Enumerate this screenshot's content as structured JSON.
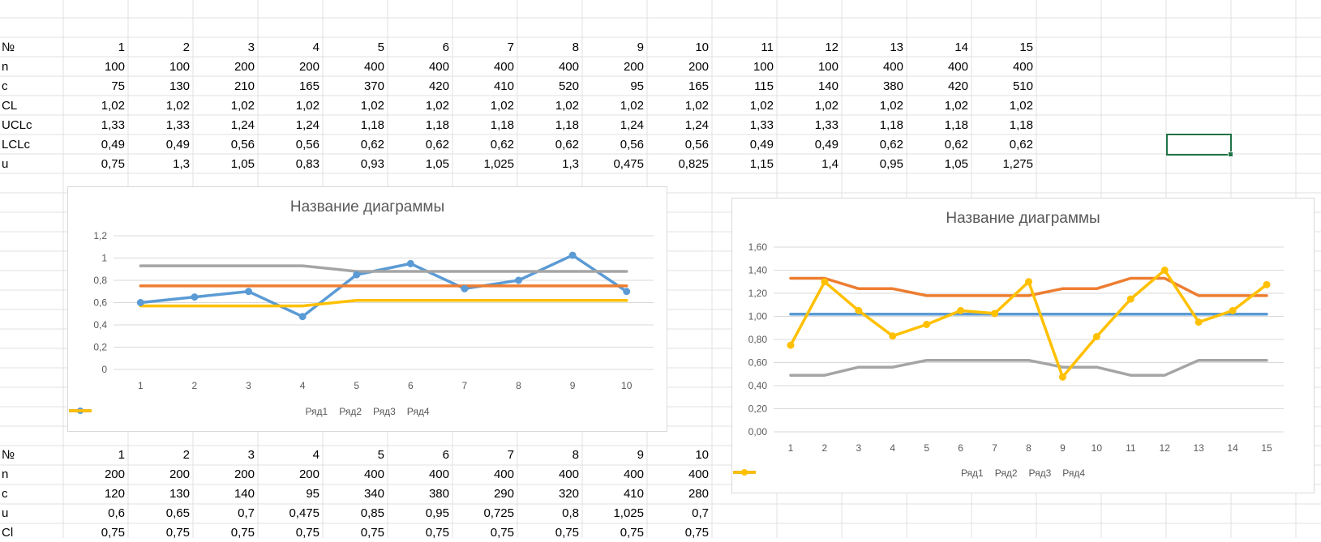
{
  "table1": {
    "rows": [
      {
        "label": "№",
        "values": [
          "1",
          "2",
          "3",
          "4",
          "5",
          "6",
          "7",
          "8",
          "9",
          "10",
          "11",
          "12",
          "13",
          "14",
          "15"
        ]
      },
      {
        "label": "n",
        "values": [
          "100",
          "100",
          "200",
          "200",
          "400",
          "400",
          "400",
          "400",
          "200",
          "200",
          "100",
          "100",
          "400",
          "400",
          "400"
        ]
      },
      {
        "label": "c",
        "values": [
          "75",
          "130",
          "210",
          "165",
          "370",
          "420",
          "410",
          "520",
          "95",
          "165",
          "115",
          "140",
          "380",
          "420",
          "510"
        ]
      },
      {
        "label": "CL",
        "values": [
          "1,02",
          "1,02",
          "1,02",
          "1,02",
          "1,02",
          "1,02",
          "1,02",
          "1,02",
          "1,02",
          "1,02",
          "1,02",
          "1,02",
          "1,02",
          "1,02",
          "1,02"
        ]
      },
      {
        "label": "UCLc",
        "values": [
          "1,33",
          "1,33",
          "1,24",
          "1,24",
          "1,18",
          "1,18",
          "1,18",
          "1,18",
          "1,24",
          "1,24",
          "1,33",
          "1,33",
          "1,18",
          "1,18",
          "1,18"
        ]
      },
      {
        "label": "LCLc",
        "values": [
          "0,49",
          "0,49",
          "0,56",
          "0,56",
          "0,62",
          "0,62",
          "0,62",
          "0,62",
          "0,56",
          "0,56",
          "0,49",
          "0,49",
          "0,62",
          "0,62",
          "0,62"
        ]
      },
      {
        "label": "u",
        "values": [
          "0,75",
          "1,3",
          "1,05",
          "0,83",
          "0,93",
          "1,05",
          "1,025",
          "1,3",
          "0,475",
          "0,825",
          "1,15",
          "1,4",
          "0,95",
          "1,05",
          "1,275"
        ]
      }
    ]
  },
  "table2": {
    "rows": [
      {
        "label": "№",
        "values": [
          "1",
          "2",
          "3",
          "4",
          "5",
          "6",
          "7",
          "8",
          "9",
          "10"
        ]
      },
      {
        "label": "n",
        "values": [
          "200",
          "200",
          "200",
          "200",
          "400",
          "400",
          "400",
          "400",
          "400",
          "400"
        ]
      },
      {
        "label": "c",
        "values": [
          "120",
          "130",
          "140",
          "95",
          "340",
          "380",
          "290",
          "320",
          "410",
          "280"
        ]
      },
      {
        "label": "u",
        "values": [
          "0,6",
          "0,65",
          "0,7",
          "0,475",
          "0,85",
          "0,95",
          "0,725",
          "0,8",
          "1,025",
          "0,7"
        ]
      },
      {
        "label": "Cl",
        "values": [
          "0,75",
          "0,75",
          "0,75",
          "0,75",
          "0,75",
          "0,75",
          "0,75",
          "0,75",
          "0,75",
          "0,75"
        ]
      }
    ]
  },
  "colors": {
    "series1": "#5b9bd5",
    "series2": "#ed7d31",
    "series3": "#a5a5a5",
    "series4": "#ffc000",
    "gridline": "#d9d9d9",
    "sheet_grid": "#e1e1e1",
    "selection": "#217346"
  },
  "chart_data": [
    {
      "type": "line",
      "title": "Название диаграммы",
      "categories": [
        "1",
        "2",
        "3",
        "4",
        "5",
        "6",
        "7",
        "8",
        "9",
        "10"
      ],
      "yticks": [
        "0",
        "0,2",
        "0,4",
        "0,6",
        "0,8",
        "1",
        "1,2"
      ],
      "ylim": [
        0,
        1.2
      ],
      "grid": true,
      "legend": "bottom",
      "series": [
        {
          "name": "Ряд1",
          "markers": true,
          "values": [
            0.6,
            0.65,
            0.7,
            0.475,
            0.85,
            0.95,
            0.725,
            0.8,
            1.025,
            0.7
          ]
        },
        {
          "name": "Ряд2",
          "markers": false,
          "values": [
            0.75,
            0.75,
            0.75,
            0.75,
            0.75,
            0.75,
            0.75,
            0.75,
            0.75,
            0.75
          ]
        },
        {
          "name": "Ряд3",
          "markers": false,
          "values": [
            0.93,
            0.93,
            0.93,
            0.93,
            0.88,
            0.88,
            0.88,
            0.88,
            0.88,
            0.88
          ]
        },
        {
          "name": "Ряд4",
          "markers": false,
          "values": [
            0.57,
            0.57,
            0.57,
            0.57,
            0.62,
            0.62,
            0.62,
            0.62,
            0.62,
            0.62
          ]
        }
      ]
    },
    {
      "type": "line",
      "title": "Название диаграммы",
      "categories": [
        "1",
        "2",
        "3",
        "4",
        "5",
        "6",
        "7",
        "8",
        "9",
        "10",
        "11",
        "12",
        "13",
        "14",
        "15"
      ],
      "yticks": [
        "0,00",
        "0,20",
        "0,40",
        "0,60",
        "0,80",
        "1,00",
        "1,20",
        "1,40",
        "1,60"
      ],
      "ylim": [
        0,
        1.6
      ],
      "grid": true,
      "legend": "bottom",
      "series": [
        {
          "name": "Ряд1",
          "markers": false,
          "values": [
            1.02,
            1.02,
            1.02,
            1.02,
            1.02,
            1.02,
            1.02,
            1.02,
            1.02,
            1.02,
            1.02,
            1.02,
            1.02,
            1.02,
            1.02
          ]
        },
        {
          "name": "Ряд2",
          "markers": false,
          "values": [
            1.33,
            1.33,
            1.24,
            1.24,
            1.18,
            1.18,
            1.18,
            1.18,
            1.24,
            1.24,
            1.33,
            1.33,
            1.18,
            1.18,
            1.18
          ]
        },
        {
          "name": "Ряд3",
          "markers": false,
          "values": [
            0.49,
            0.49,
            0.56,
            0.56,
            0.62,
            0.62,
            0.62,
            0.62,
            0.56,
            0.56,
            0.49,
            0.49,
            0.62,
            0.62,
            0.62
          ]
        },
        {
          "name": "Ряд4",
          "markers": true,
          "values": [
            0.75,
            1.3,
            1.05,
            0.83,
            0.93,
            1.05,
            1.025,
            1.3,
            0.475,
            0.825,
            1.15,
            1.4,
            0.95,
            1.05,
            1.275
          ]
        }
      ]
    }
  ]
}
